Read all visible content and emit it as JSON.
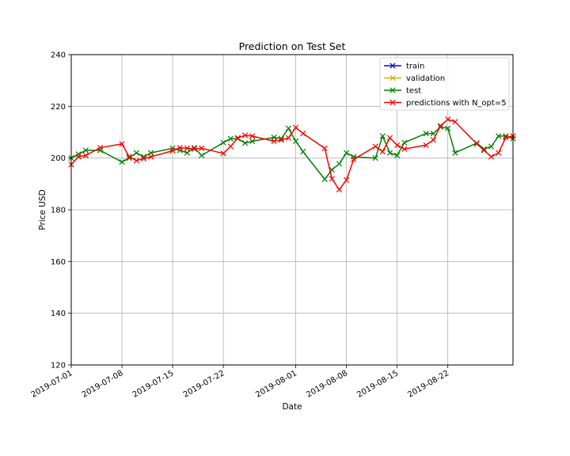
{
  "chart_data": {
    "type": "line",
    "title": "Prediction on Test Set",
    "xlabel": "Date",
    "ylabel": "Price USD",
    "xlim": [
      "2019-07-01",
      "2019-08-31"
    ],
    "ylim": [
      120,
      240
    ],
    "yticks": [
      120,
      140,
      160,
      180,
      200,
      220,
      240
    ],
    "xticks": [
      "2019-07-01",
      "2019-07-08",
      "2019-07-15",
      "2019-07-22",
      "2019-08-01",
      "2019-08-08",
      "2019-08-15",
      "2019-08-22"
    ],
    "grid": true,
    "legend_position": "top-right",
    "series": [
      {
        "name": "train",
        "color": "#0000ff",
        "marker": "x",
        "points": []
      },
      {
        "name": "validation",
        "color": "#bfbf00",
        "marker": "x",
        "points": []
      },
      {
        "name": "test",
        "color": "#008000",
        "marker": "x",
        "points": [
          [
            "2019-07-01",
            200.0
          ],
          [
            "2019-07-02",
            201.5
          ],
          [
            "2019-07-03",
            203.0
          ],
          [
            "2019-07-05",
            203.0
          ],
          [
            "2019-07-08",
            198.5
          ],
          [
            "2019-07-09",
            200.0
          ],
          [
            "2019-07-10",
            202.0
          ],
          [
            "2019-07-11",
            200.5
          ],
          [
            "2019-07-12",
            202.0
          ],
          [
            "2019-07-15",
            203.8
          ],
          [
            "2019-07-16",
            203.0
          ],
          [
            "2019-07-17",
            202.0
          ],
          [
            "2019-07-18",
            204.0
          ],
          [
            "2019-07-19",
            201.0
          ],
          [
            "2019-07-22",
            206.0
          ],
          [
            "2019-07-23",
            207.5
          ],
          [
            "2019-07-24",
            207.5
          ],
          [
            "2019-07-25",
            205.8
          ],
          [
            "2019-07-26",
            206.5
          ],
          [
            "2019-07-29",
            208.0
          ],
          [
            "2019-07-30",
            207.5
          ],
          [
            "2019-07-31",
            211.5
          ],
          [
            "2019-08-01",
            206.5
          ],
          [
            "2019-08-02",
            202.5
          ],
          [
            "2019-08-05",
            191.8
          ],
          [
            "2019-08-06",
            195.5
          ],
          [
            "2019-08-07",
            197.8
          ],
          [
            "2019-08-08",
            202.0
          ],
          [
            "2019-08-09",
            200.5
          ],
          [
            "2019-08-12",
            200.0
          ],
          [
            "2019-08-13",
            208.5
          ],
          [
            "2019-08-14",
            202.0
          ],
          [
            "2019-08-15",
            201.0
          ],
          [
            "2019-08-16",
            206.0
          ],
          [
            "2019-08-19",
            209.5
          ],
          [
            "2019-08-20",
            209.5
          ],
          [
            "2019-08-21",
            212.0
          ],
          [
            "2019-08-22",
            211.5
          ],
          [
            "2019-08-23",
            202.0
          ],
          [
            "2019-08-26",
            205.8
          ],
          [
            "2019-08-27",
            203.5
          ],
          [
            "2019-08-28",
            204.5
          ],
          [
            "2019-08-29",
            208.5
          ],
          [
            "2019-08-30",
            208.5
          ],
          [
            "2019-08-31",
            207.5
          ]
        ]
      },
      {
        "name": "predictions with N_opt=5",
        "color": "#ff0000",
        "marker": "x",
        "points": [
          [
            "2019-07-01",
            197.5
          ],
          [
            "2019-07-02",
            200.5
          ],
          [
            "2019-07-03",
            201.0
          ],
          [
            "2019-07-05",
            204.0
          ],
          [
            "2019-07-08",
            205.5
          ],
          [
            "2019-07-09",
            200.5
          ],
          [
            "2019-07-10",
            199.0
          ],
          [
            "2019-07-11",
            199.8
          ],
          [
            "2019-07-12",
            200.5
          ],
          [
            "2019-07-15",
            202.8
          ],
          [
            "2019-07-16",
            204.0
          ],
          [
            "2019-07-17",
            203.8
          ],
          [
            "2019-07-18",
            203.5
          ],
          [
            "2019-07-19",
            203.8
          ],
          [
            "2019-07-22",
            201.8
          ],
          [
            "2019-07-23",
            204.5
          ],
          [
            "2019-07-24",
            207.8
          ],
          [
            "2019-07-25",
            208.8
          ],
          [
            "2019-07-26",
            208.5
          ],
          [
            "2019-07-29",
            206.5
          ],
          [
            "2019-07-30",
            207.0
          ],
          [
            "2019-07-31",
            207.8
          ],
          [
            "2019-08-01",
            211.8
          ],
          [
            "2019-08-02",
            209.5
          ],
          [
            "2019-08-05",
            203.8
          ],
          [
            "2019-08-06",
            192.0
          ],
          [
            "2019-08-07",
            187.8
          ],
          [
            "2019-08-08",
            191.5
          ],
          [
            "2019-08-09",
            199.5
          ],
          [
            "2019-08-12",
            204.5
          ],
          [
            "2019-08-13",
            202.5
          ],
          [
            "2019-08-14",
            207.8
          ],
          [
            "2019-08-15",
            205.0
          ],
          [
            "2019-08-16",
            203.5
          ],
          [
            "2019-08-19",
            205.0
          ],
          [
            "2019-08-20",
            207.0
          ],
          [
            "2019-08-21",
            212.5
          ],
          [
            "2019-08-22",
            215.0
          ],
          [
            "2019-08-23",
            214.0
          ],
          [
            "2019-08-26",
            205.5
          ],
          [
            "2019-08-27",
            203.0
          ],
          [
            "2019-08-28",
            200.5
          ],
          [
            "2019-08-29",
            202.0
          ],
          [
            "2019-08-30",
            208.0
          ],
          [
            "2019-08-31",
            208.5
          ]
        ]
      }
    ]
  }
}
